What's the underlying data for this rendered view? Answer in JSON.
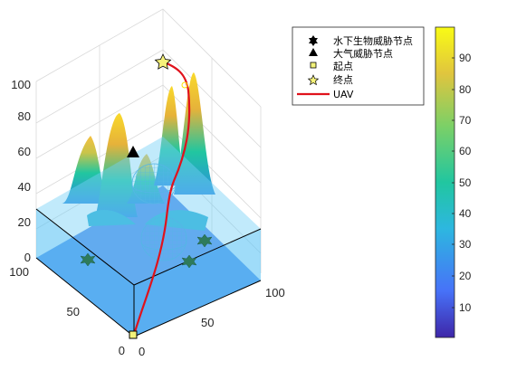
{
  "chart_data": {
    "type": "3d-surface",
    "x_ticks": [
      "0",
      "50",
      "100"
    ],
    "y_ticks": [
      "0",
      "50",
      "100"
    ],
    "z_ticks": [
      "0",
      "20",
      "40",
      "60",
      "80",
      "100"
    ],
    "zlim": [
      0,
      100
    ],
    "colorbar": {
      "range": [
        0,
        100
      ],
      "ticks": [
        "10",
        "20",
        "30",
        "40",
        "50",
        "60",
        "70",
        "80",
        "90"
      ],
      "colormap": [
        "#3e26a8",
        "#4772f8",
        "#2db7e0",
        "#21c6a0",
        "#7bd067",
        "#e0c53e",
        "#f9fb15"
      ]
    },
    "legend": [
      {
        "symbol": "hexagram",
        "label": "水下生物威胁节点"
      },
      {
        "symbol": "triangle",
        "label": "大气威胁节点"
      },
      {
        "symbol": "square",
        "label": "起点"
      },
      {
        "symbol": "star",
        "label": "终点"
      },
      {
        "symbol": "line",
        "label": "UAV"
      }
    ],
    "colors": {
      "path": "#e0121c",
      "water": "#5fc4f5",
      "start": "#f2f27a",
      "end": "#f6f27a",
      "underwater": "#2e7b5c"
    }
  }
}
